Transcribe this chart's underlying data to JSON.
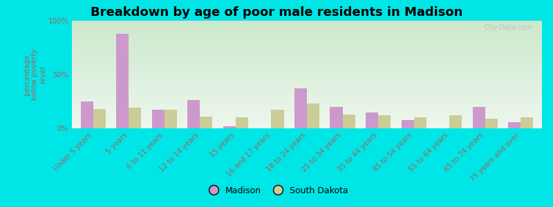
{
  "title": "Breakdown by age of poor male residents in Madison",
  "ylabel": "percentage\nbelow poverty\nlevel",
  "categories": [
    "Under 5 years",
    "5 years",
    "6 to 11 years",
    "12 to 14 years",
    "15 years",
    "16 and 17 years",
    "18 to 24 years",
    "25 to 34 years",
    "35 to 44 years",
    "45 to 54 years",
    "55 to 64 years",
    "65 to 74 years",
    "75 years and over"
  ],
  "madison_values": [
    25,
    88,
    17,
    26,
    2,
    0,
    37,
    20,
    15,
    8,
    0,
    20,
    6
  ],
  "sd_values": [
    18,
    19,
    17,
    11,
    10,
    17,
    23,
    13,
    12,
    10,
    12,
    9,
    10
  ],
  "madison_color": "#cc99cc",
  "sd_color": "#cccc99",
  "bg_color_outer": "#00e5e5",
  "bg_color_plot_top": "#cce8cc",
  "bg_color_plot_bottom": "#eef7ee",
  "ylim": [
    0,
    100
  ],
  "yticks": [
    0,
    50,
    100
  ],
  "ytick_labels": [
    "0%",
    "50%",
    "100%"
  ],
  "bar_width": 0.35,
  "legend_labels": [
    "Madison",
    "South Dakota"
  ],
  "title_fontsize": 13,
  "label_fontsize": 7.5,
  "tick_fontsize": 7.5,
  "axis_text_color": "#996666",
  "watermark": "City-Data.com"
}
